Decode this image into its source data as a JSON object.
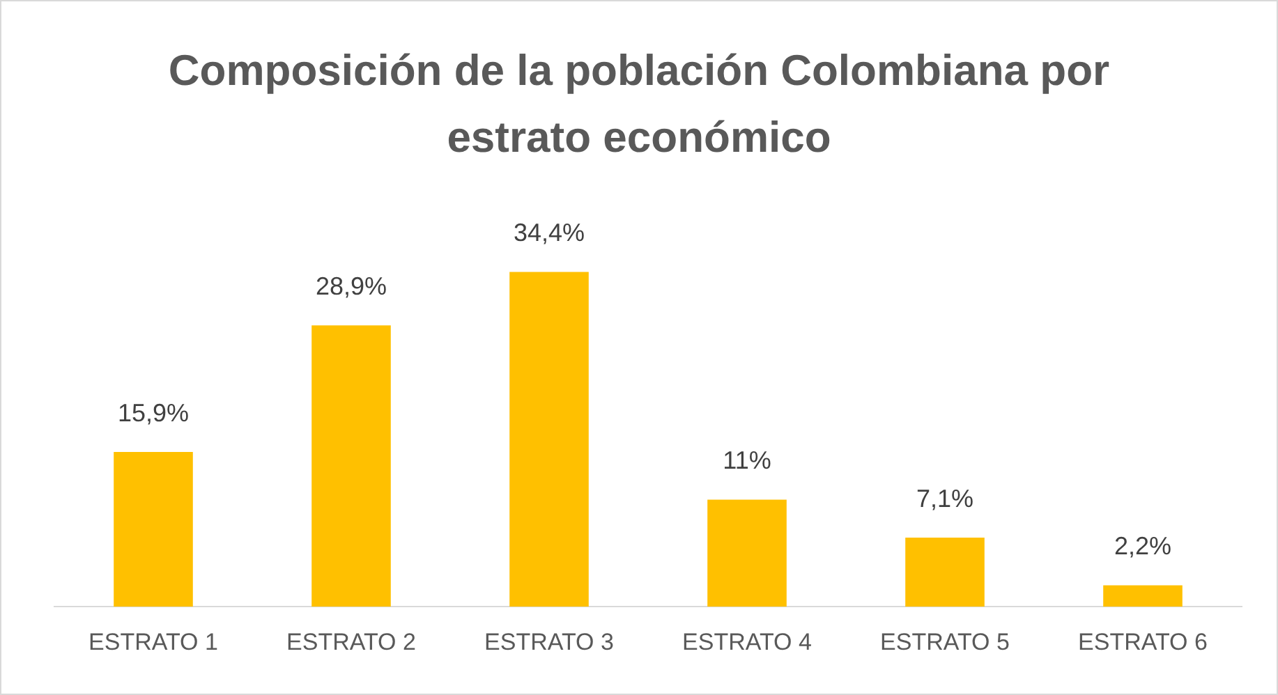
{
  "chart_data": {
    "type": "bar",
    "title": "Composición de la población Colombiana por estrato económico",
    "categories": [
      "ESTRATO 1",
      "ESTRATO 2",
      "ESTRATO 3",
      "ESTRATO 4",
      "ESTRATO 5",
      "ESTRATO 6"
    ],
    "values": [
      15.9,
      28.9,
      34.4,
      11,
      7.1,
      2.2
    ],
    "value_labels": [
      "15,9%",
      "28,9%",
      "34,4%",
      "11%",
      "7,1%",
      "2,2%"
    ],
    "color": "#ffc000",
    "grid": false,
    "legend": false,
    "tick_labels": "x"
  }
}
